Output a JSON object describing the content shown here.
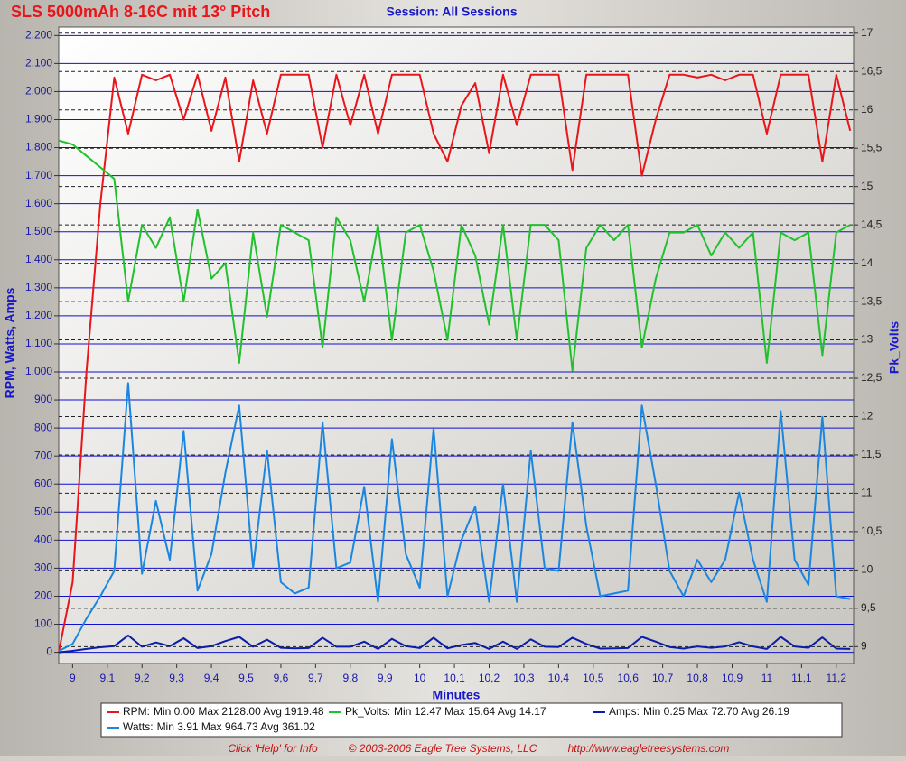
{
  "chart_data": {
    "type": "line",
    "title": "SLS 5000mAh 8-16C mit 13° Pitch",
    "subtitle": "Session: All Sessions",
    "x_label": "Minutes",
    "y_label": "RPM, Watts, Amps",
    "y2_label": "Pk_Volts",
    "x": [
      8.96,
      9,
      9.04,
      9.08,
      9.12,
      9.16,
      9.2,
      9.24,
      9.28,
      9.32,
      9.36,
      9.4,
      9.44,
      9.48,
      9.52,
      9.56,
      9.6,
      9.64,
      9.68,
      9.72,
      9.76,
      9.8,
      9.84,
      9.88,
      9.92,
      9.96,
      10,
      10.04,
      10.08,
      10.12,
      10.16,
      10.2,
      10.24,
      10.28,
      10.32,
      10.36,
      10.4,
      10.44,
      10.48,
      10.52,
      10.56,
      10.6,
      10.64,
      10.68,
      10.72,
      10.76,
      10.8,
      10.84,
      10.88,
      10.92,
      10.96,
      11,
      11.04,
      11.08,
      11.12,
      11.16,
      11.2,
      11.24
    ],
    "series": [
      {
        "name": "RPM:",
        "stats": "Min 0.00 Max 2128.00 Avg 1919.48",
        "color": "#e8161b",
        "values": [
          0,
          250,
          1000,
          1600,
          2050,
          1850,
          2060,
          2040,
          2060,
          1900,
          2060,
          1860,
          2050,
          1750,
          2040,
          1850,
          2060,
          2060,
          2060,
          1800,
          2060,
          1880,
          2060,
          1850,
          2060,
          2060,
          2060,
          1850,
          1750,
          1950,
          2030,
          1780,
          2060,
          1880,
          2060,
          2060,
          2060,
          1720,
          2060,
          2060,
          2060,
          2060,
          1700,
          1900,
          2060,
          2060,
          2050,
          2060,
          2040,
          2060,
          2060,
          1850,
          2060,
          2060,
          2060,
          1750,
          2060,
          1860
        ]
      },
      {
        "name": "Pk_Volts:",
        "stats": "Min 12.47 Max 15.64 Avg 14.17",
        "color": "#22c02e",
        "axis": "y2",
        "values": [
          15.6,
          15.55,
          15.4,
          15.25,
          15.1,
          13.5,
          14.5,
          14.2,
          14.6,
          13.5,
          14.7,
          13.8,
          14.0,
          12.7,
          14.4,
          13.3,
          14.5,
          14.4,
          14.3,
          12.9,
          14.6,
          14.3,
          13.5,
          14.5,
          13.0,
          14.4,
          14.5,
          13.9,
          13.0,
          14.5,
          14.1,
          13.2,
          14.5,
          13.0,
          14.5,
          14.5,
          14.3,
          12.6,
          14.2,
          14.5,
          14.3,
          14.5,
          12.9,
          13.8,
          14.4,
          14.4,
          14.5,
          14.1,
          14.4,
          14.2,
          14.4,
          12.7,
          14.4,
          14.3,
          14.4,
          12.8,
          14.4,
          14.5
        ]
      },
      {
        "name": "Amps:",
        "stats": "Min 0.25 Max 72.70 Avg 26.19",
        "color": "#0a1ca8",
        "values": [
          0,
          5,
          12,
          18,
          22,
          60,
          20,
          35,
          22,
          50,
          15,
          22,
          40,
          55,
          20,
          45,
          16,
          14,
          15,
          52,
          20,
          20,
          38,
          12,
          48,
          22,
          15,
          52,
          14,
          26,
          33,
          12,
          38,
          12,
          46,
          20,
          19,
          52,
          30,
          13,
          14,
          15,
          55,
          38,
          19,
          13,
          21,
          16,
          21,
          36,
          21,
          12,
          55,
          21,
          16,
          53,
          13,
          12
        ]
      },
      {
        "name": "Watts:",
        "stats": "Min 3.91 Max 964.73 Avg 361.02",
        "color": "#1a86e0",
        "values": [
          4,
          30,
          120,
          200,
          290,
          960,
          280,
          540,
          330,
          790,
          220,
          350,
          640,
          880,
          300,
          720,
          250,
          210,
          230,
          820,
          300,
          320,
          590,
          180,
          760,
          350,
          230,
          800,
          200,
          400,
          520,
          180,
          600,
          180,
          720,
          300,
          290,
          820,
          450,
          200,
          210,
          220,
          880,
          600,
          290,
          200,
          330,
          250,
          330,
          570,
          330,
          180,
          860,
          330,
          240,
          840,
          200,
          190
        ]
      }
    ],
    "xlim": [
      8.96,
      11.25
    ],
    "xticks": [
      9,
      {
        "value": 9.1,
        "label": "9,1"
      },
      {
        "value": 9.2,
        "label": "9,2"
      },
      {
        "value": 9.3,
        "label": "9,3"
      },
      {
        "value": 9.4,
        "label": "9,4"
      },
      {
        "value": 9.5,
        "label": "9,5"
      },
      {
        "value": 9.6,
        "label": "9,6"
      },
      {
        "value": 9.7,
        "label": "9,7"
      },
      {
        "value": 9.8,
        "label": "9,8"
      },
      {
        "value": 9.9,
        "label": "9,9"
      },
      10,
      {
        "value": 10.1,
        "label": "10,1"
      },
      {
        "value": 10.2,
        "label": "10,2"
      },
      {
        "value": 10.3,
        "label": "10,3"
      },
      {
        "value": 10.4,
        "label": "10,4"
      },
      {
        "value": 10.5,
        "label": "10,5"
      },
      {
        "value": 10.6,
        "label": "10,6"
      },
      {
        "value": 10.7,
        "label": "10,7"
      },
      {
        "value": 10.8,
        "label": "10,8"
      },
      {
        "value": 10.9,
        "label": "10,9"
      },
      11,
      {
        "value": 11.1,
        "label": "11,1"
      },
      {
        "value": 11.2,
        "label": "11,2"
      }
    ],
    "ylim": [
      -40,
      2230
    ],
    "yticks": [
      0,
      100,
      200,
      300,
      400,
      500,
      600,
      700,
      800,
      900,
      {
        "value": 1000,
        "label": "1.000"
      },
      {
        "value": 1100,
        "label": "1.100"
      },
      {
        "value": 1200,
        "label": "1.200"
      },
      {
        "value": 1300,
        "label": "1.300"
      },
      {
        "value": 1400,
        "label": "1.400"
      },
      {
        "value": 1500,
        "label": "1.500"
      },
      {
        "value": 1600,
        "label": "1.600"
      },
      {
        "value": 1700,
        "label": "1.700"
      },
      {
        "value": 1800,
        "label": "1.800"
      },
      {
        "value": 1900,
        "label": "1.900"
      },
      {
        "value": 2000,
        "label": "2.000"
      },
      {
        "value": 2100,
        "label": "2.100"
      },
      {
        "value": 2200,
        "label": "2.200"
      }
    ],
    "y2lim": [
      8.78,
      17.08
    ],
    "y2ticks": [
      9,
      {
        "value": 9.5,
        "label": "9,5"
      },
      10,
      {
        "value": 10.5,
        "label": "10,5"
      },
      11,
      {
        "value": 11.5,
        "label": "11,5"
      },
      12,
      {
        "value": 12.5,
        "label": "12,5"
      },
      13,
      {
        "value": 13.5,
        "label": "13,5"
      },
      14,
      {
        "value": 14.5,
        "label": "14,5"
      },
      15,
      {
        "value": 15.5,
        "label": "15,5"
      },
      16,
      {
        "value": 16.5,
        "label": "16,5"
      },
      17
    ],
    "grid": true,
    "footer": [
      "Click 'Help' for Info",
      "© 2003-2006 Eagle Tree Systems, LLC",
      "http://www.eagletreesystems.com"
    ]
  }
}
